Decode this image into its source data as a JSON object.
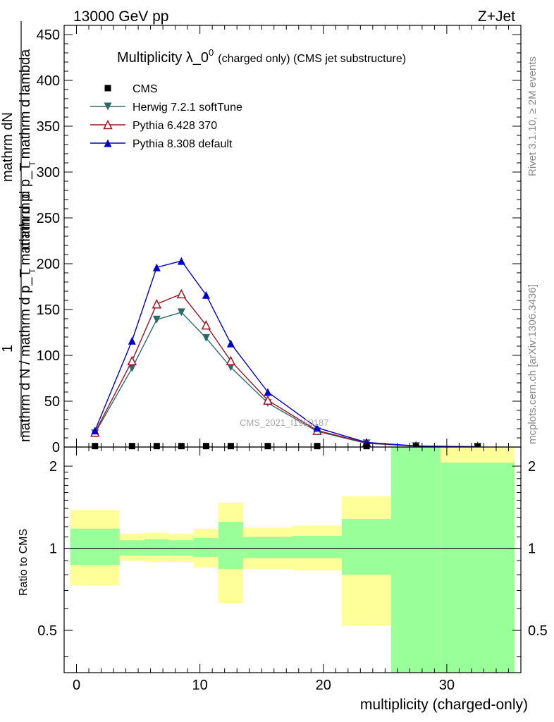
{
  "header": {
    "left": "13000 GeV pp",
    "right": "Z+Jet"
  },
  "side": {
    "rivet": "Rivet 3.1.10, ≥ 2M events",
    "mcplots": "mcplots.cern.ch [arXiv:1306.3436]"
  },
  "chart_data": [
    {
      "type": "line",
      "title": "Multiplicity λ_0",
      "title_sup": "0",
      "subtitle": "(charged only) (CMS jet substructure)",
      "watermark": "CMS_2021_I1920187",
      "ylabel_top": "mathrm dN",
      "ylabel_mid": "mathrm d p_T mathrm d lambda",
      "ylabel_sub1": "T",
      "ylabel_one": "1",
      "ylabel_bottom": "mathrm d N / mathrm d p_T mathrm d p",
      "ylabel_sub2": "T",
      "xlim": [
        -1,
        36
      ],
      "ylim": [
        0,
        460
      ],
      "yticks": [
        0,
        50,
        100,
        150,
        200,
        250,
        300,
        350,
        400,
        450
      ],
      "x": [
        1.5,
        4.5,
        6.5,
        8.5,
        10.5,
        12.5,
        15.5,
        19.5,
        23.5,
        27.5,
        32.5
      ],
      "series": [
        {
          "name": "CMS",
          "color": "#000000",
          "marker": "square",
          "values": [
            1,
            1,
            1,
            1,
            1,
            1,
            1,
            1,
            1,
            0.5,
            0.3
          ]
        },
        {
          "name": "Herwig 7.2.1 softTune",
          "color": "#2a6a6a",
          "marker": "tri-down",
          "values": [
            15,
            86,
            139,
            147,
            119,
            87,
            48,
            17,
            4,
            1,
            0.3
          ]
        },
        {
          "name": "Pythia 6.428 370",
          "color": "#a01020",
          "marker": "tri-up-open",
          "values": [
            16,
            94,
            156,
            167,
            133,
            94,
            51,
            18,
            4.5,
            1,
            0.3
          ]
        },
        {
          "name": "Pythia 8.308 default",
          "color": "#0000cc",
          "marker": "tri-up",
          "values": [
            18,
            116,
            196,
            203,
            166,
            113,
            60,
            21,
            5,
            1.2,
            0.3
          ]
        }
      ]
    },
    {
      "type": "area",
      "ylabel": "Ratio to CMS",
      "xlabel": "multiplicity (charged-only)",
      "xlim": [
        -1,
        36
      ],
      "ylim": [
        0.35,
        2.35
      ],
      "yticks": [
        0.5,
        1,
        2
      ],
      "xticks": [
        0,
        10,
        20,
        30
      ],
      "bins": [
        {
          "x0": -0.5,
          "x1": 3.5,
          "yellow": [
            0.73,
            1.38
          ],
          "green": [
            0.87,
            1.18
          ]
        },
        {
          "x0": 3.5,
          "x1": 5.5,
          "yellow": [
            0.9,
            1.13
          ],
          "green": [
            0.94,
            1.07
          ]
        },
        {
          "x0": 5.5,
          "x1": 7.5,
          "yellow": [
            0.89,
            1.14
          ],
          "green": [
            0.94,
            1.08
          ]
        },
        {
          "x0": 7.5,
          "x1": 9.5,
          "yellow": [
            0.89,
            1.13
          ],
          "green": [
            0.94,
            1.07
          ]
        },
        {
          "x0": 9.5,
          "x1": 11.5,
          "yellow": [
            0.85,
            1.18
          ],
          "green": [
            0.93,
            1.09
          ]
        },
        {
          "x0": 11.5,
          "x1": 13.5,
          "yellow": [
            0.63,
            1.47
          ],
          "green": [
            0.84,
            1.25
          ]
        },
        {
          "x0": 13.5,
          "x1": 17.5,
          "yellow": [
            0.84,
            1.19
          ],
          "green": [
            0.92,
            1.1
          ]
        },
        {
          "x0": 17.5,
          "x1": 21.5,
          "yellow": [
            0.83,
            1.21
          ],
          "green": [
            0.92,
            1.11
          ]
        },
        {
          "x0": 21.5,
          "x1": 25.5,
          "yellow": [
            0.52,
            1.55
          ],
          "green": [
            0.8,
            1.28
          ]
        },
        {
          "x0": 25.5,
          "x1": 29.5,
          "yellow": [
            0.35,
            2.35
          ],
          "green": [
            0.35,
            2.35
          ]
        },
        {
          "x0": 29.5,
          "x1": 35.5,
          "yellow": [
            0.35,
            2.35
          ],
          "green": [
            0.35,
            2.06
          ]
        }
      ],
      "colors": {
        "yellow": "#ffff99",
        "green": "#99ff99"
      }
    }
  ]
}
